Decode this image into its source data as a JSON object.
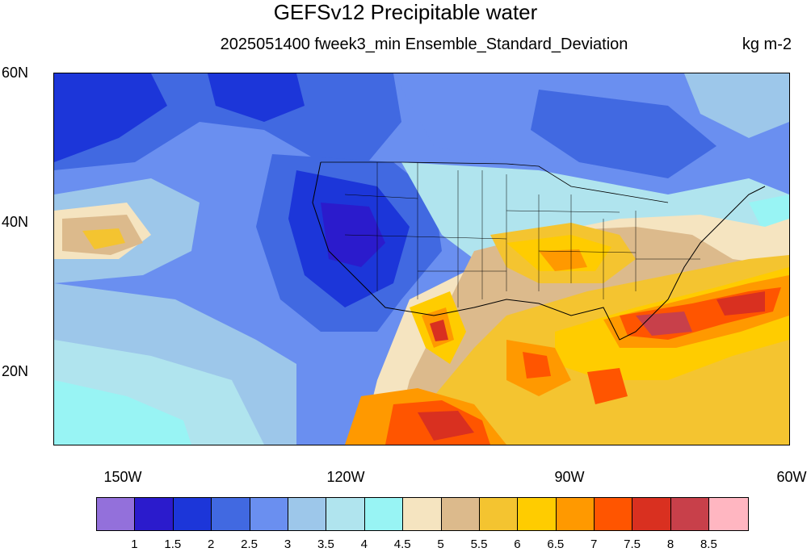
{
  "title": "GEFSv12 Precipitable water",
  "subtitle": "2025051400 fweek3_min Ensemble_Standard_Deviation",
  "units": "kg m-2",
  "lat_labels": [
    "60N",
    "40N",
    "20N"
  ],
  "lon_labels": [
    "150W",
    "120W",
    "90W",
    "60W"
  ],
  "colorbar": {
    "labels": [
      "1",
      "1.5",
      "2",
      "2.5",
      "3",
      "3.5",
      "4",
      "4.5",
      "5",
      "5.5",
      "6",
      "6.5",
      "7",
      "7.5",
      "8",
      "8.5"
    ],
    "colors": [
      "#9370db",
      "#2b1bcc",
      "#1c36d9",
      "#4169e1",
      "#6a8ff0",
      "#9dc7ea",
      "#b0e4ee",
      "#98f4f4",
      "#f5e4c0",
      "#dcba8c",
      "#f4c430",
      "#ffcc00",
      "#ff9900",
      "#ff5500",
      "#d93020",
      "#c8404a",
      "#ffb6c1"
    ]
  },
  "map": {
    "region": "North America and adjacent Pacific and Atlantic",
    "lat_range": [
      10,
      60
    ],
    "lon_range": [
      -160,
      -60
    ]
  }
}
